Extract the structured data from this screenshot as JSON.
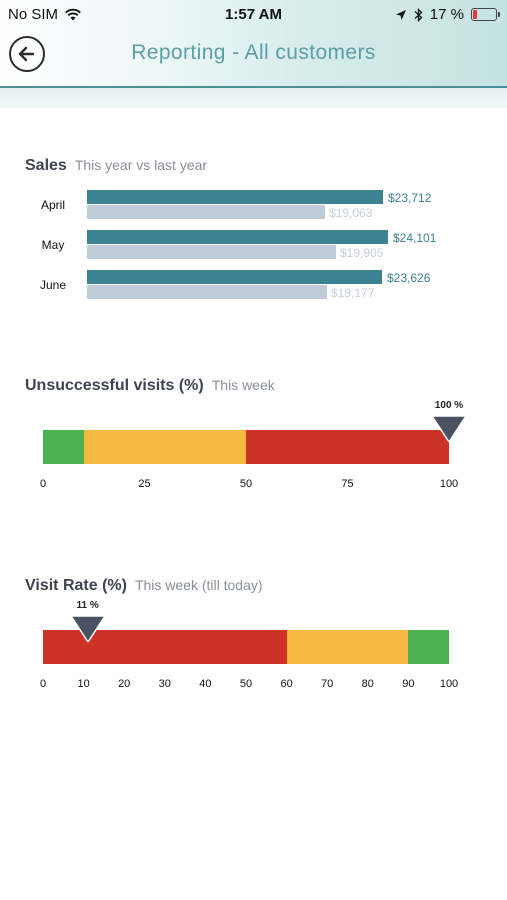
{
  "status_bar": {
    "carrier": "No SIM",
    "time": "1:57 AM",
    "battery_text": "17 %",
    "icons": [
      "wifi-icon",
      "location-arrow-icon",
      "bluetooth-icon",
      "battery-low-icon"
    ]
  },
  "header": {
    "title": "Reporting - All customers",
    "back_icon": "back-arrow-icon",
    "accent": "#5a9fa5"
  },
  "sales": {
    "title": "Sales",
    "subtitle": "This year vs last year",
    "colors": {
      "this_year": "#3b8391",
      "last_year": "#bfccd8"
    },
    "max_value": 24101,
    "rows": [
      {
        "label": "April",
        "current": 23712,
        "current_text": "$23,712",
        "previous": 19063,
        "previous_text": "$19,063"
      },
      {
        "label": "May",
        "current": 24101,
        "current_text": "$24,101",
        "previous": 19905,
        "previous_text": "$19,905"
      },
      {
        "label": "June",
        "current": 23626,
        "current_text": "$23,626",
        "previous": 19177,
        "previous_text": "$19,177"
      }
    ]
  },
  "unsuccessful": {
    "title": "Unsuccessful visits (%)",
    "subtitle": "This week",
    "range": [
      0,
      100
    ],
    "segments": [
      {
        "from": 0,
        "to": 10,
        "color": "#4caf50"
      },
      {
        "from": 10,
        "to": 50,
        "color": "#f5b942"
      },
      {
        "from": 50,
        "to": 100,
        "color": "#cc3326"
      }
    ],
    "ticks": [
      "0",
      "25",
      "50",
      "75",
      "100"
    ],
    "marker_value": 100,
    "marker_label": "100 %"
  },
  "visit_rate": {
    "title": "Visit Rate (%)",
    "subtitle": "This week (till today)",
    "range": [
      0,
      100
    ],
    "segments": [
      {
        "from": 0,
        "to": 60,
        "color": "#cc3326"
      },
      {
        "from": 60,
        "to": 90,
        "color": "#f5b942"
      },
      {
        "from": 90,
        "to": 100,
        "color": "#4caf50"
      }
    ],
    "ticks": [
      "0",
      "10",
      "20",
      "30",
      "40",
      "50",
      "60",
      "70",
      "80",
      "90",
      "100"
    ],
    "marker_value": 11,
    "marker_label": "11 %"
  }
}
